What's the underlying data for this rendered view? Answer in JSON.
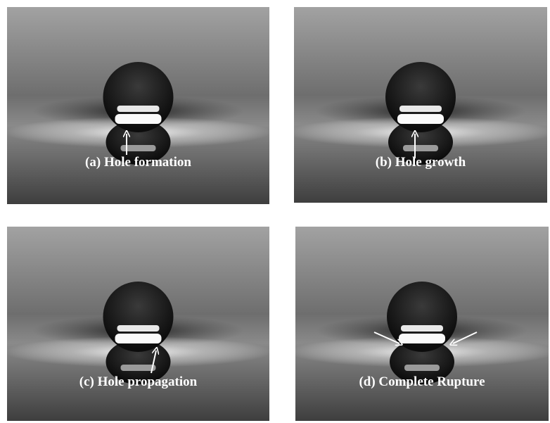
{
  "panels": [
    {
      "caption": "(a) Hole formation"
    },
    {
      "caption": "(b) Hole growth"
    },
    {
      "caption": "(c) Hole propagation"
    },
    {
      "caption": "(d) Complete Rupture"
    }
  ]
}
